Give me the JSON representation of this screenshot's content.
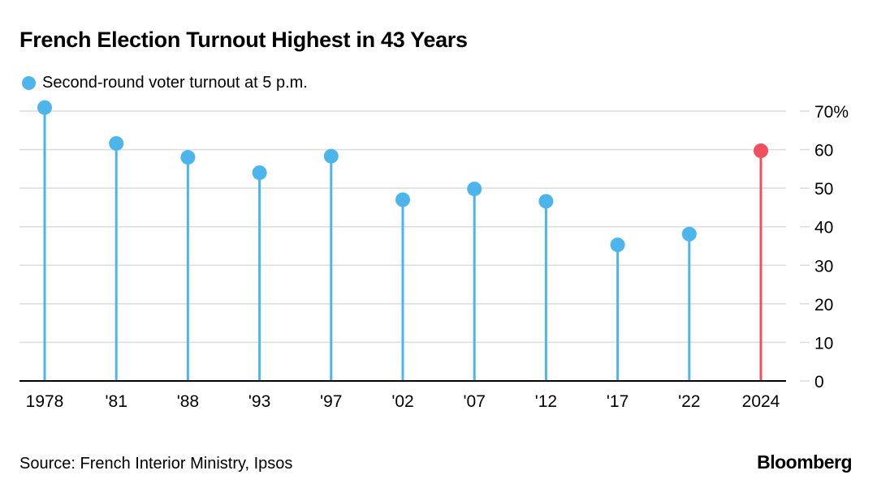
{
  "title": "French Election Turnout Highest in 43 Years",
  "legend": {
    "label": "Second-round voter turnout at 5 p.m."
  },
  "source": "Source: French Interior Ministry, Ipsos",
  "brand": "Bloomberg",
  "colors": {
    "series": "#4cb6ec",
    "highlight": "#f0505e",
    "grid": "#dcdcdc",
    "axis": "#000000"
  },
  "chart_data": {
    "type": "lollipop",
    "categories": [
      "1978",
      "'81",
      "'88",
      "'93",
      "'97",
      "'02",
      "'07",
      "'12",
      "'17",
      "'22",
      "2024"
    ],
    "series": [
      {
        "name": "Second-round voter turnout at 5 p.m.",
        "values": [
          70.9,
          61.6,
          58.0,
          54.0,
          58.3,
          47.0,
          49.8,
          46.6,
          35.3,
          38.1,
          59.7
        ]
      }
    ],
    "highlight_category": "2024",
    "ylim": [
      0,
      70
    ],
    "yticks": [
      0,
      10,
      20,
      30,
      40,
      50,
      60,
      70
    ],
    "ytick_labels": [
      "0",
      "10",
      "20",
      "30",
      "40",
      "50",
      "60",
      "70%"
    ],
    "grid": true,
    "y_axis_side": "right"
  }
}
